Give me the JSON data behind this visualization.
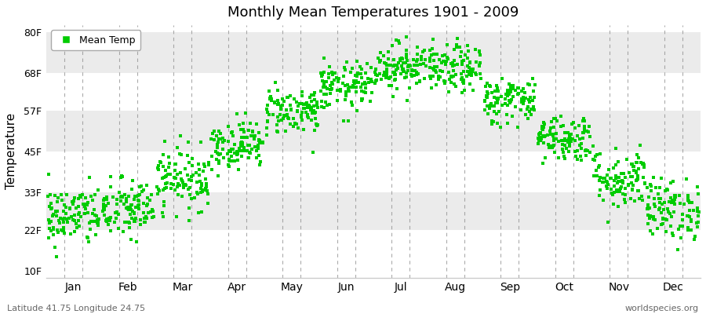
{
  "title": "Monthly Mean Temperatures 1901 - 2009",
  "ylabel": "Temperature",
  "xlabel_months": [
    "Jan",
    "Feb",
    "Mar",
    "Apr",
    "May",
    "Jun",
    "Jul",
    "Aug",
    "Sep",
    "Oct",
    "Nov",
    "Dec"
  ],
  "ytick_labels": [
    "10F",
    "22F",
    "33F",
    "45F",
    "57F",
    "68F",
    "80F"
  ],
  "ytick_values": [
    10,
    22,
    33,
    45,
    57,
    68,
    80
  ],
  "ylim": [
    8,
    82
  ],
  "dot_color": "#00cc00",
  "footer_left": "Latitude 41.75 Longitude 24.75",
  "footer_right": "worldspecies.org",
  "legend_label": "Mean Temp",
  "mean_temps_F": [
    26,
    28,
    37,
    47,
    57,
    64,
    70,
    69,
    60,
    49,
    37,
    28
  ],
  "std_temps_F": [
    4.5,
    4.5,
    4.5,
    3.5,
    3.5,
    3.5,
    3.5,
    3.5,
    3.5,
    3.5,
    4.5,
    4.5
  ],
  "n_years": 109,
  "band_colors": [
    "#ffffff",
    "#ebebeb"
  ],
  "vline_color": "#888888",
  "spine_color": "#cccccc"
}
